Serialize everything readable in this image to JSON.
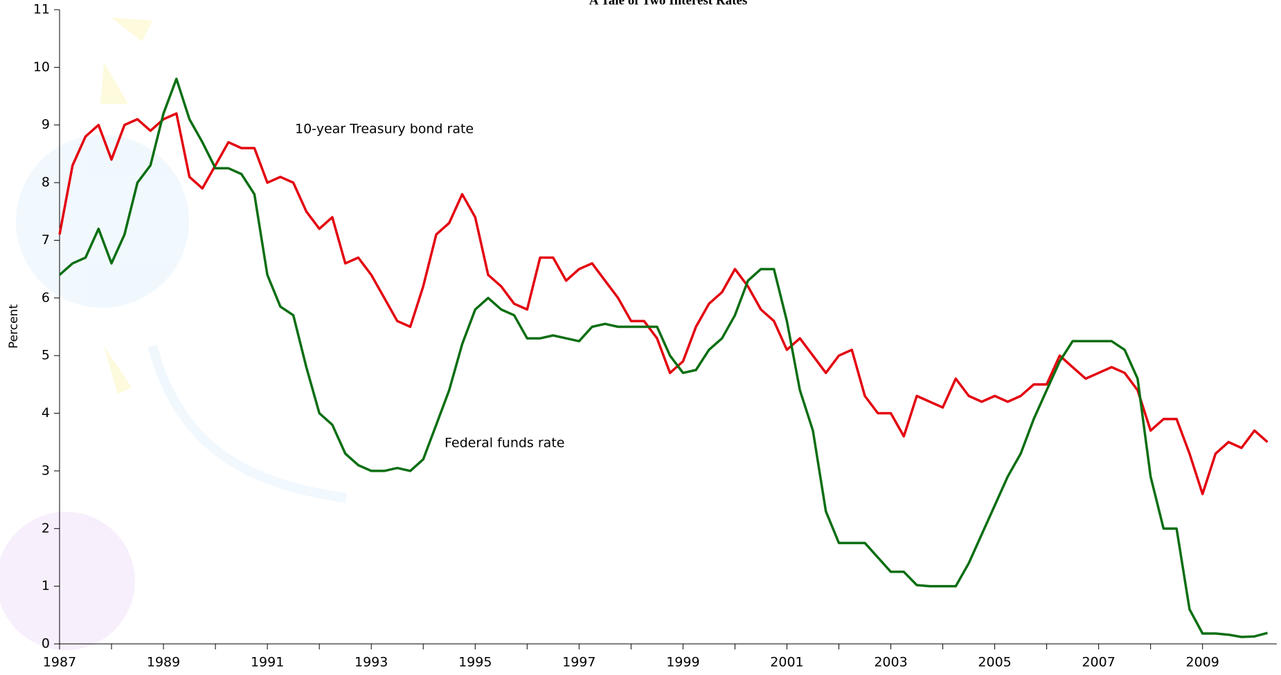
{
  "chart_data": {
    "type": "line",
    "title": "A Tale of Two Interest Rates",
    "y_label": "Percent",
    "annotations": [
      "10-year Treasury bond rate",
      "Federal funds rate"
    ],
    "xlim": [
      1987,
      2010.43
    ],
    "xticks": [
      1987,
      1989,
      1991,
      1993,
      1995,
      1997,
      1999,
      2001,
      2003,
      2005,
      2007,
      2009
    ],
    "ylim": [
      0,
      11
    ],
    "yticks": [
      0,
      1,
      2,
      3,
      4,
      5,
      6,
      7,
      8,
      9,
      10,
      11
    ],
    "x": [
      1987,
      1987.25,
      1987.5,
      1987.75,
      1988,
      1988.25,
      1988.5,
      1988.75,
      1989,
      1989.25,
      1989.5,
      1989.75,
      1990,
      1990.25,
      1990.5,
      1990.75,
      1991,
      1991.25,
      1991.5,
      1991.75,
      1992,
      1992.25,
      1992.5,
      1992.75,
      1993,
      1993.25,
      1993.5,
      1993.75,
      1994,
      1994.25,
      1994.5,
      1994.75,
      1995,
      1995.25,
      1995.5,
      1995.75,
      1996,
      1996.25,
      1996.5,
      1996.75,
      1997,
      1997.25,
      1997.5,
      1997.75,
      1998,
      1998.25,
      1998.5,
      1998.75,
      1999,
      1999.25,
      1999.5,
      1999.75,
      2000,
      2000.25,
      2000.5,
      2000.75,
      2001,
      2001.25,
      2001.5,
      2001.75,
      2002,
      2002.25,
      2002.5,
      2002.75,
      2003,
      2003.25,
      2003.5,
      2003.75,
      2004,
      2004.25,
      2004.5,
      2004.75,
      2005,
      2005.25,
      2005.5,
      2005.75,
      2006,
      2006.25,
      2006.5,
      2006.75,
      2007,
      2007.25,
      2007.5,
      2007.75,
      2008,
      2008.25,
      2008.5,
      2008.75,
      2009,
      2009.25,
      2009.5,
      2009.75,
      2010,
      2010.25
    ],
    "series": [
      {
        "name": "10-year Treasury bond rate",
        "color": "#e3000f",
        "values": [
          7.1,
          8.3,
          8.8,
          9.0,
          8.4,
          9.0,
          9.1,
          8.9,
          9.1,
          9.2,
          8.1,
          7.9,
          8.3,
          8.7,
          8.6,
          8.6,
          8.0,
          8.1,
          8.0,
          7.5,
          7.2,
          7.4,
          6.6,
          6.7,
          6.4,
          6.0,
          5.6,
          5.5,
          6.2,
          7.1,
          7.3,
          7.8,
          7.4,
          6.4,
          6.2,
          5.9,
          5.8,
          6.7,
          6.7,
          6.3,
          6.5,
          6.6,
          6.3,
          6.0,
          5.6,
          5.6,
          5.3,
          4.7,
          4.9,
          5.5,
          5.9,
          6.1,
          6.5,
          6.2,
          5.8,
          5.6,
          5.1,
          5.3,
          5.0,
          4.7,
          5.0,
          5.1,
          4.3,
          4.0,
          4.0,
          3.6,
          4.3,
          4.2,
          4.1,
          4.6,
          4.3,
          4.2,
          4.3,
          4.2,
          4.3,
          4.5,
          4.5,
          5.0,
          4.8,
          4.6,
          4.7,
          4.8,
          4.7,
          4.4,
          3.7,
          3.9,
          3.9,
          3.3,
          2.6,
          3.3,
          3.5,
          3.4,
          3.7,
          3.5
        ]
      },
      {
        "name": "Federal funds rate",
        "color": "#0a6e12",
        "values": [
          6.4,
          6.6,
          6.7,
          7.2,
          6.6,
          7.1,
          8.0,
          8.3,
          9.2,
          9.8,
          9.1,
          8.7,
          8.25,
          8.25,
          8.15,
          7.8,
          6.4,
          5.85,
          5.7,
          4.8,
          4.0,
          3.8,
          3.3,
          3.1,
          3.0,
          3.0,
          3.05,
          3.0,
          3.2,
          3.8,
          4.4,
          5.2,
          5.8,
          6.0,
          5.8,
          5.7,
          5.3,
          5.3,
          5.35,
          5.3,
          5.25,
          5.5,
          5.55,
          5.5,
          5.5,
          5.5,
          5.5,
          5.0,
          4.7,
          4.75,
          5.1,
          5.3,
          5.7,
          6.3,
          6.5,
          6.5,
          5.6,
          4.4,
          3.7,
          2.3,
          1.75,
          1.75,
          1.75,
          1.5,
          1.25,
          1.25,
          1.02,
          1.0,
          1.0,
          1.0,
          1.4,
          1.9,
          2.4,
          2.9,
          3.3,
          3.9,
          4.4,
          4.9,
          5.25,
          5.25,
          5.25,
          5.25,
          5.1,
          4.6,
          2.9,
          2.0,
          2.0,
          0.6,
          0.18,
          0.18,
          0.16,
          0.12,
          0.13,
          0.19
        ]
      }
    ]
  }
}
